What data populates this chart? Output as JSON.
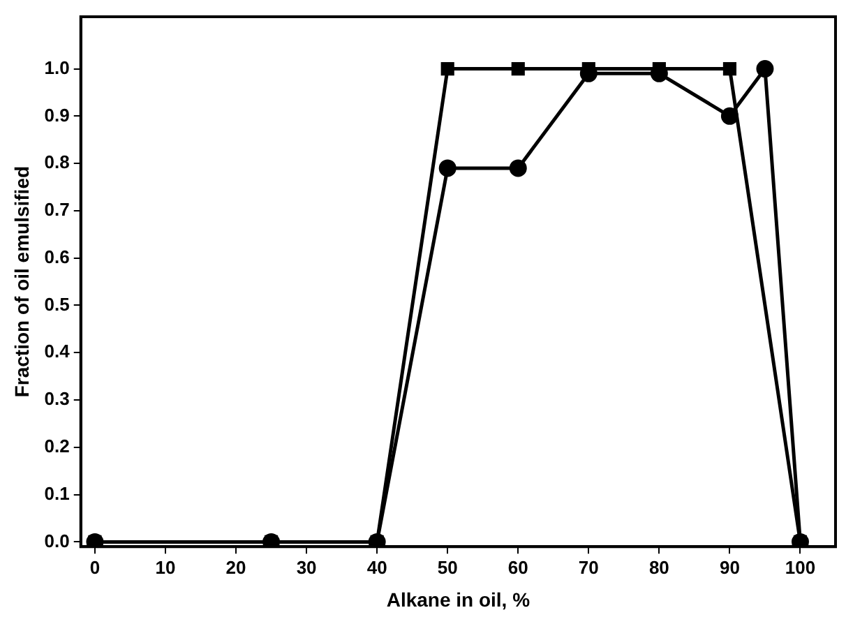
{
  "chart_data": {
    "type": "line",
    "xlabel": "Alkane in oil, %",
    "ylabel": "Fraction of oil emulsified",
    "xlim": [
      -2,
      105
    ],
    "ylim": [
      -0.01,
      1.11
    ],
    "xticks": [
      0,
      10,
      20,
      30,
      40,
      50,
      60,
      70,
      80,
      90,
      100
    ],
    "yticks": [
      {
        "value": 0,
        "label": "0.0"
      },
      {
        "value": 0.1,
        "label": "0.1"
      },
      {
        "value": 0.2,
        "label": "0.2"
      },
      {
        "value": 0.3,
        "label": "0.3"
      },
      {
        "value": 0.4,
        "label": "0.4"
      },
      {
        "value": 0.5,
        "label": "0.5"
      },
      {
        "value": 0.6,
        "label": "0.6"
      },
      {
        "value": 0.7,
        "label": "0.7"
      },
      {
        "value": 0.8,
        "label": "0.8"
      },
      {
        "value": 0.9,
        "label": "0.9"
      },
      {
        "value": 1,
        "label": "1.0"
      }
    ],
    "grid": false,
    "legend": false,
    "line_style": "solid",
    "series": [
      {
        "color": "#000000",
        "marker": "square",
        "x": [
          0,
          25,
          40,
          50,
          60,
          70,
          80,
          90,
          100
        ],
        "values": [
          0,
          0,
          0,
          1.0,
          1.0,
          1.0,
          1.0,
          1.0,
          0
        ]
      },
      {
        "color": "#000000",
        "marker": "circle",
        "x": [
          0,
          25,
          40,
          50,
          60,
          70,
          80,
          90,
          95,
          100
        ],
        "values": [
          0,
          0,
          0,
          0.79,
          0.79,
          0.99,
          0.99,
          0.9,
          1.0,
          0
        ]
      }
    ]
  }
}
